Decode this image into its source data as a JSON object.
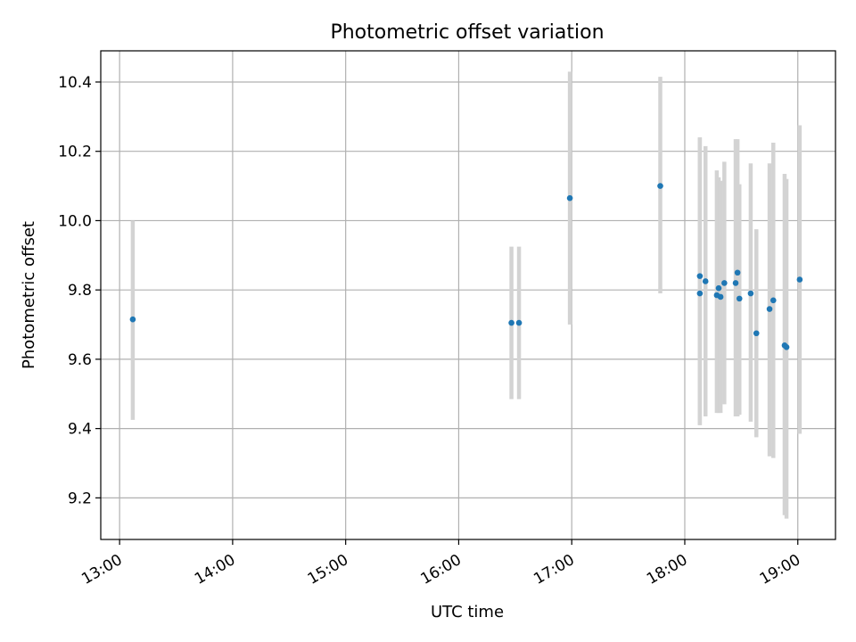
{
  "chart_data": {
    "type": "scatter",
    "title": "Photometric offset variation",
    "xlabel": "UTC time",
    "ylabel": "Photometric offset",
    "x_ticks": [
      "13:00",
      "14:00",
      "15:00",
      "16:00",
      "17:00",
      "18:00",
      "19:00"
    ],
    "y_ticks": [
      "9.2",
      "9.4",
      "9.6",
      "9.8",
      "10.0",
      "10.2",
      "10.4"
    ],
    "xlim": [
      "12:50",
      "19:20"
    ],
    "ylim": [
      9.08,
      10.49
    ],
    "grid": true,
    "points": [
      {
        "x": "13:07",
        "y": 9.715,
        "y_low": 9.425,
        "y_high": 10.0
      },
      {
        "x": "16:28",
        "y": 9.705,
        "y_low": 9.485,
        "y_high": 9.925
      },
      {
        "x": "16:32",
        "y": 9.705,
        "y_low": 9.485,
        "y_high": 9.925
      },
      {
        "x": "16:59",
        "y": 10.065,
        "y_low": 9.7,
        "y_high": 10.43
      },
      {
        "x": "17:47",
        "y": 10.1,
        "y_low": 9.79,
        "y_high": 10.415
      },
      {
        "x": "18:08",
        "y": 9.84,
        "y_low": 9.41,
        "y_high": 10.24
      },
      {
        "x": "18:08",
        "y": 9.79,
        "y_low": 9.41,
        "y_high": 10.24
      },
      {
        "x": "18:11",
        "y": 9.825,
        "y_low": 9.435,
        "y_high": 10.215
      },
      {
        "x": "18:17",
        "y": 9.785,
        "y_low": 9.445,
        "y_high": 10.145
      },
      {
        "x": "18:18",
        "y": 9.805,
        "y_low": 9.445,
        "y_high": 10.125
      },
      {
        "x": "18:19",
        "y": 9.78,
        "y_low": 9.445,
        "y_high": 10.115
      },
      {
        "x": "18:21",
        "y": 9.82,
        "y_low": 9.47,
        "y_high": 10.17
      },
      {
        "x": "18:27",
        "y": 9.82,
        "y_low": 9.435,
        "y_high": 10.235
      },
      {
        "x": "18:28",
        "y": 9.85,
        "y_low": 9.435,
        "y_high": 10.235
      },
      {
        "x": "18:29",
        "y": 9.775,
        "y_low": 9.44,
        "y_high": 10.105
      },
      {
        "x": "18:35",
        "y": 9.79,
        "y_low": 9.42,
        "y_high": 10.165
      },
      {
        "x": "18:38",
        "y": 9.675,
        "y_low": 9.375,
        "y_high": 9.975
      },
      {
        "x": "18:45",
        "y": 9.745,
        "y_low": 9.32,
        "y_high": 10.165
      },
      {
        "x": "18:47",
        "y": 9.77,
        "y_low": 9.315,
        "y_high": 10.225
      },
      {
        "x": "18:53",
        "y": 9.64,
        "y_low": 9.15,
        "y_high": 10.135
      },
      {
        "x": "18:54",
        "y": 9.635,
        "y_low": 9.14,
        "y_high": 10.12
      },
      {
        "x": "19:01",
        "y": 9.83,
        "y_low": 9.385,
        "y_high": 10.275
      }
    ],
    "colors": {
      "point": "#1f77b4",
      "errorbar": "#d3d3d3",
      "grid": "#b0b0b0",
      "axis": "#000000"
    }
  }
}
